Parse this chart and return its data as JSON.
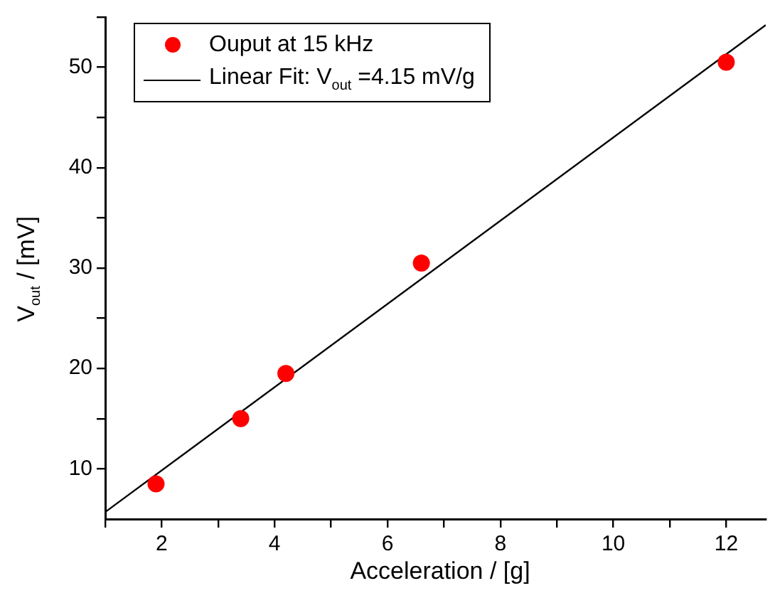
{
  "chart_data": {
    "type": "scatter",
    "xlabel": "Acceleration / [g]",
    "ylabel": "V$_{out}$ / [mV]",
    "xlim": [
      1,
      12.7
    ],
    "ylim": [
      5,
      55
    ],
    "xticks": [
      {
        "value": 1,
        "label": null
      },
      2,
      {
        "value": 3,
        "label": null
      },
      4,
      {
        "value": 5,
        "label": null
      },
      6,
      {
        "value": 7,
        "label": null
      },
      8,
      {
        "value": 9,
        "label": null
      },
      10,
      {
        "value": 11,
        "label": null
      },
      12
    ],
    "yticks": [
      10,
      {
        "value": 15,
        "label": null
      },
      20,
      {
        "value": 25,
        "label": null
      },
      30,
      {
        "value": 35,
        "label": null
      },
      40,
      {
        "value": 45,
        "label": null
      },
      50,
      {
        "value": 55,
        "label": null
      }
    ],
    "grid": false,
    "legend": "top left",
    "series": [
      {
        "name": "Ouput at 15 kHz",
        "type": "scatter",
        "marker": "circle",
        "color": "#ff0000",
        "x": [
          1.9,
          3.4,
          4.2,
          6.6,
          12
        ],
        "values": [
          8.5,
          15,
          19.5,
          30.5,
          50.5
        ]
      },
      {
        "name": "Linear Fit: V$_{out}$ =4.15 mV/g",
        "type": "line",
        "marker": "none",
        "color": "#000000",
        "line_style": "solid",
        "x": [
          1,
          12.7
        ],
        "values": [
          5.7,
          54.2
        ]
      }
    ]
  }
}
